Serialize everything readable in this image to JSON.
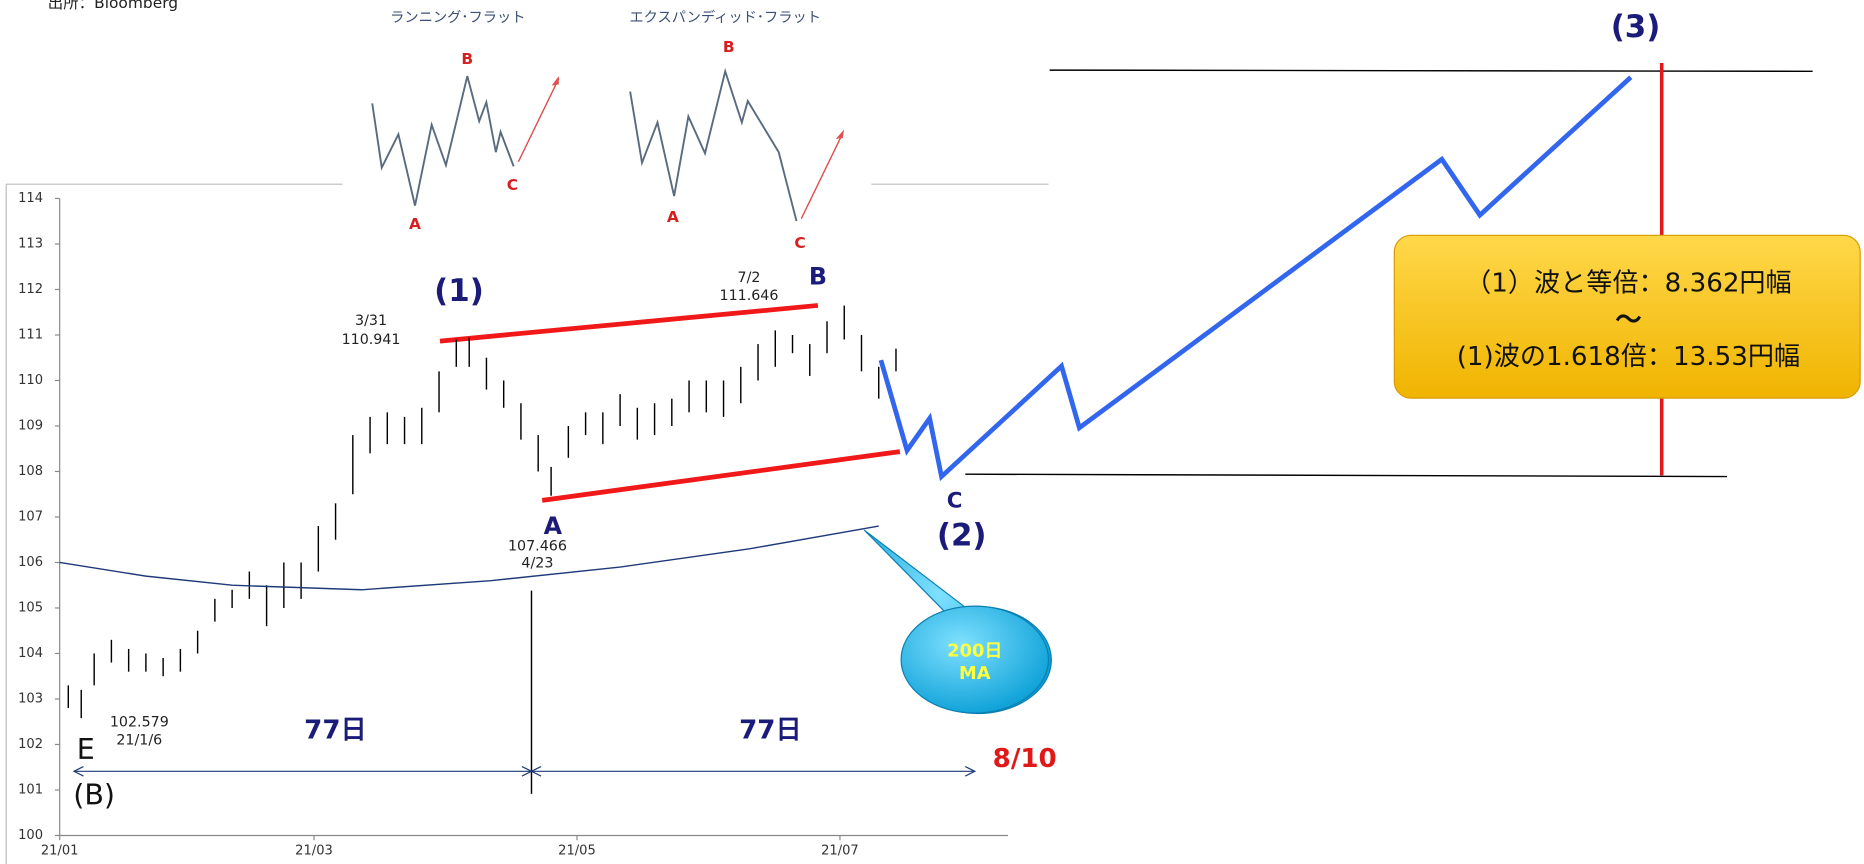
{
  "chart_data": {
    "type": "ohlc",
    "x": [
      2,
      5,
      8,
      12,
      16,
      20,
      24,
      28,
      32,
      36,
      40,
      44,
      48,
      52,
      56,
      60,
      64,
      68,
      72,
      76,
      80,
      84,
      88,
      92,
      95,
      99,
      103,
      107,
      111,
      114,
      118,
      122,
      126,
      130,
      134,
      138,
      142,
      146,
      150,
      154,
      158,
      162,
      166,
      170,
      174,
      178,
      182,
      186,
      190,
      194
    ],
    "high": [
      103.3,
      103.2,
      104,
      104.3,
      104.1,
      104,
      103.9,
      104.1,
      104.5,
      105.2,
      105.4,
      105.8,
      105.5,
      106,
      106,
      106.8,
      107.3,
      108.8,
      109.2,
      109.3,
      109.2,
      109.4,
      110.2,
      110.9,
      110.941,
      110.5,
      110,
      109.5,
      108.8,
      108.1,
      109,
      109.3,
      109.3,
      109.7,
      109.4,
      109.5,
      109.6,
      110,
      110,
      110,
      110.3,
      110.8,
      111.1,
      111,
      110.8,
      111.3,
      111.646,
      111,
      110.3,
      110.7
    ],
    "low": [
      102.8,
      102.579,
      103.3,
      103.8,
      103.6,
      103.6,
      103.5,
      103.6,
      104,
      104.7,
      105,
      105.2,
      104.6,
      105,
      105.2,
      105.8,
      106.5,
      107.5,
      108.4,
      108.6,
      108.6,
      108.6,
      109.3,
      110.3,
      110.3,
      109.8,
      109.4,
      108.7,
      108,
      107.466,
      108.3,
      108.8,
      108.6,
      109,
      108.7,
      108.8,
      109,
      109.3,
      109.3,
      109.2,
      109.5,
      110,
      110.3,
      110.6,
      110.1,
      110.6,
      110.9,
      110.2,
      109.6,
      110.2
    ],
    "color": "#000000",
    "ma": {
      "x": [
        0,
        20,
        40,
        70,
        100,
        130,
        160,
        190
      ],
      "values": [
        106,
        105.7,
        105.5,
        105.4,
        105.6,
        105.9,
        106.3,
        106.8
      ],
      "color": "#1f3a7a"
    },
    "xlim": [
      0,
      220
    ],
    "xticks": [
      {
        "value": 0,
        "label": "21/01"
      },
      {
        "value": 59,
        "label": "21/03"
      },
      {
        "value": 120,
        "label": "21/05"
      },
      {
        "value": 181,
        "label": "21/07"
      }
    ],
    "ylim": [
      100,
      114
    ],
    "yticks": [
      100,
      101,
      102,
      103,
      104,
      105,
      106,
      107,
      108,
      109,
      110,
      111,
      112,
      113,
      114
    ],
    "annotations": [
      "出所：Bloomberg",
      "3/31",
      "110.941",
      "(1)",
      "7/2",
      "111.646",
      "B",
      "A",
      "107.466",
      "4/23",
      "102.579",
      "21/1/6",
      "E",
      "(B)",
      "77日",
      "77日",
      "8/10",
      "C",
      "(2)",
      "(3)",
      "200日",
      "MA",
      "（1）波と等倍：8.362円幅",
      "～",
      "(1)波の1.618倍：13.53円幅"
    ],
    "insets": [
      {
        "title": "ランニング･フラット",
        "labels": [
          "A",
          "B",
          "C"
        ]
      },
      {
        "title": "エクスパンディッド･フラット",
        "labels": [
          "A",
          "B",
          "C"
        ]
      }
    ]
  }
}
